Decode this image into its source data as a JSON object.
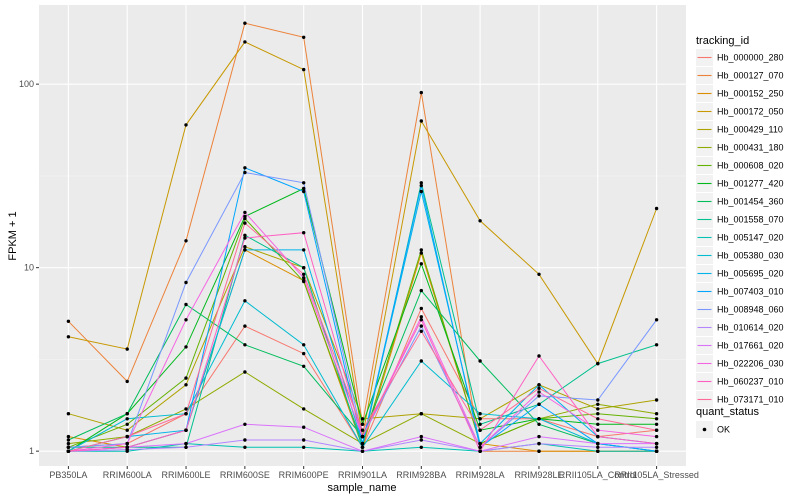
{
  "chart_data": {
    "type": "line",
    "title": "",
    "xlabel": "sample_name",
    "ylabel": "FPKM + 1",
    "y_scale": "log10",
    "ylim": [
      0.83,
      270
    ],
    "y_ticks": [
      1,
      10,
      100
    ],
    "y_tick_labels": [
      "1",
      "10",
      "100"
    ],
    "grid": true,
    "legend_position": "right",
    "legend_title": "tracking_id",
    "point_legend_title": "quant_status",
    "point_legend_label": "OK",
    "categories": [
      "PB350LA",
      "RRIM600LA",
      "RRIM600LE",
      "RRIM600SE",
      "RRIM600PE",
      "RRIM901LA",
      "RRIM928BA",
      "RRIM928LA",
      "RRIM928LE",
      "RRII105LA_Control",
      "RRII105LA_Stressed"
    ],
    "series": [
      {
        "name": "Hb_000000_280",
        "color": "#F8766D",
        "values": [
          1.05,
          1.1,
          1.6,
          4.8,
          3.4,
          1.05,
          6.0,
          1.5,
          1.5,
          1.2,
          1.3
        ]
      },
      {
        "name": "Hb_000127_070",
        "color": "#EC8239",
        "values": [
          5.1,
          2.4,
          14.0,
          215,
          180,
          1.4,
          90,
          1.0,
          1.0,
          1.0,
          1.0
        ]
      },
      {
        "name": "Hb_000152_250",
        "color": "#DB8E00",
        "values": [
          1.2,
          1.05,
          1.3,
          12.5,
          8.5,
          1.05,
          12.0,
          1.1,
          1.0,
          1.0,
          1.0
        ]
      },
      {
        "name": "Hb_000172_050",
        "color": "#C79800",
        "values": [
          4.2,
          3.6,
          60,
          170,
          120,
          1.2,
          63,
          18,
          9.2,
          3.0,
          21
        ]
      },
      {
        "name": "Hb_000429_110",
        "color": "#AEA200",
        "values": [
          1.6,
          1.3,
          2.3,
          13.0,
          10.0,
          1.5,
          1.6,
          1.5,
          2.3,
          1.7,
          1.9
        ]
      },
      {
        "name": "Hb_000431_180",
        "color": "#8FAA00",
        "values": [
          1.1,
          1.2,
          1.7,
          2.7,
          1.7,
          1.1,
          1.6,
          1.1,
          1.5,
          1.8,
          1.6
        ]
      },
      {
        "name": "Hb_000608_020",
        "color": "#64B200",
        "values": [
          1.05,
          1.4,
          2.5,
          18.5,
          8.4,
          1.1,
          12.5,
          1.1,
          1.5,
          1.6,
          1.5
        ]
      },
      {
        "name": "Hb_001277_420",
        "color": "#00B81B",
        "values": [
          1.0,
          1.6,
          3.7,
          19.0,
          27,
          1.4,
          10.5,
          1.3,
          1.5,
          1.4,
          1.4
        ]
      },
      {
        "name": "Hb_001454_360",
        "color": "#00BD5C",
        "values": [
          1.15,
          1.6,
          6.3,
          3.8,
          2.9,
          1.2,
          7.5,
          3.1,
          1.4,
          1.1,
          1.0
        ]
      },
      {
        "name": "Hb_001558_070",
        "color": "#00C08E",
        "values": [
          1.05,
          1.05,
          1.05,
          15.0,
          10.0,
          1.05,
          29,
          1.4,
          1.8,
          3.0,
          3.8
        ]
      },
      {
        "name": "Hb_005147_020",
        "color": "#00C1B2",
        "values": [
          1.0,
          1.0,
          1.1,
          1.05,
          1.05,
          1.0,
          1.05,
          1.0,
          1.1,
          1.0,
          1.0
        ]
      },
      {
        "name": "Hb_005380_030",
        "color": "#00BCD1",
        "values": [
          1.0,
          1.5,
          1.6,
          6.6,
          3.8,
          1.05,
          3.1,
          1.6,
          1.5,
          1.1,
          1.0
        ]
      },
      {
        "name": "Hb_005695_020",
        "color": "#00B3E9",
        "values": [
          1.0,
          1.2,
          1.3,
          12.5,
          12.5,
          1.1,
          26,
          1.1,
          2.3,
          1.2,
          1.1
        ]
      },
      {
        "name": "Hb_007403_010",
        "color": "#00A5FF",
        "values": [
          1.0,
          1.05,
          1.3,
          35,
          26,
          1.1,
          28,
          1.05,
          1.8,
          1.1,
          1.0
        ]
      },
      {
        "name": "Hb_008948_060",
        "color": "#7997FF",
        "values": [
          1.05,
          1.1,
          8.3,
          33,
          29,
          1.2,
          4.8,
          1.05,
          2.0,
          1.9,
          5.2
        ]
      },
      {
        "name": "Hb_010614_020",
        "color": "#B385FF",
        "values": [
          1.0,
          1.02,
          1.05,
          1.15,
          1.15,
          1.0,
          1.15,
          1.0,
          1.1,
          1.05,
          1.05
        ]
      },
      {
        "name": "Hb_017661_020",
        "color": "#DB72FB",
        "values": [
          1.0,
          1.05,
          1.1,
          1.4,
          1.35,
          1.0,
          1.2,
          1.0,
          1.2,
          1.1,
          1.1
        ]
      },
      {
        "name": "Hb_022206_030",
        "color": "#F564E3",
        "values": [
          1.0,
          1.1,
          5.2,
          20.0,
          8.8,
          1.2,
          5.4,
          1.05,
          2.1,
          1.3,
          1.2
        ]
      },
      {
        "name": "Hb_060237_010",
        "color": "#FF61C3",
        "values": [
          1.0,
          1.05,
          1.3,
          14.5,
          15.5,
          1.2,
          5.2,
          1.0,
          3.3,
          1.2,
          1.1
        ]
      },
      {
        "name": "Hb_073171_010",
        "color": "#FF6A98",
        "values": [
          1.0,
          1.2,
          1.6,
          17.5,
          9.2,
          1.3,
          4.5,
          1.3,
          2.2,
          1.5,
          1.3
        ]
      }
    ]
  }
}
